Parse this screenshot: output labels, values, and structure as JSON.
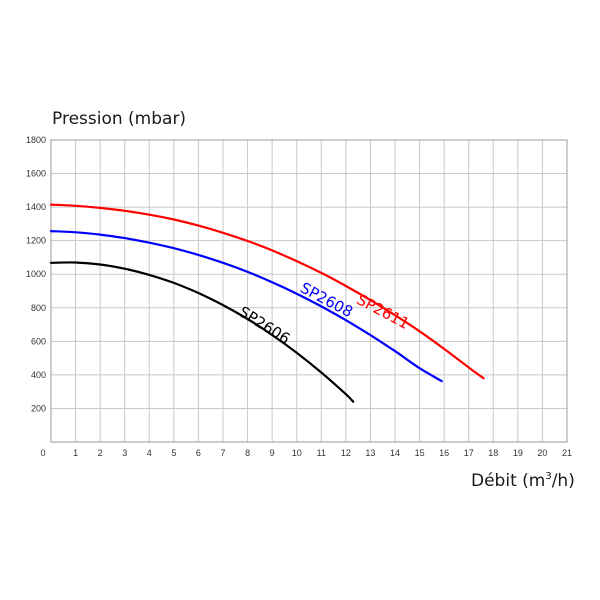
{
  "chart_data": {
    "type": "line",
    "ylabel": "Pression (mbar)",
    "xlabel_main": "Débit (m",
    "xlabel_sup": "3",
    "xlabel_end": "/h)",
    "xlim": [
      0,
      21
    ],
    "ylim": [
      0,
      1800
    ],
    "x_ticks": [
      0,
      1,
      2,
      3,
      4,
      5,
      6,
      7,
      8,
      9,
      10,
      11,
      12,
      13,
      14,
      15,
      16,
      17,
      18,
      19,
      20,
      21
    ],
    "y_ticks": [
      200,
      400,
      600,
      800,
      1000,
      1200,
      1400,
      1600,
      1800
    ],
    "grid": true,
    "series": [
      {
        "name": "SP2611",
        "color": "#ff0000",
        "points": [
          [
            0,
            1415
          ],
          [
            1,
            1408
          ],
          [
            2,
            1395
          ],
          [
            3,
            1378
          ],
          [
            4,
            1355
          ],
          [
            5,
            1326
          ],
          [
            6,
            1290
          ],
          [
            7,
            1247
          ],
          [
            8,
            1198
          ],
          [
            9,
            1142
          ],
          [
            10,
            1078
          ],
          [
            11,
            1008
          ],
          [
            12,
            930
          ],
          [
            13,
            846
          ],
          [
            14,
            756
          ],
          [
            15,
            660
          ],
          [
            16,
            555
          ],
          [
            17,
            444
          ],
          [
            17.6,
            380
          ]
        ]
      },
      {
        "name": "SP2608",
        "color": "#0000ff",
        "points": [
          [
            0,
            1257
          ],
          [
            1,
            1250
          ],
          [
            2,
            1236
          ],
          [
            3,
            1215
          ],
          [
            4,
            1188
          ],
          [
            5,
            1155
          ],
          [
            6,
            1115
          ],
          [
            7,
            1068
          ],
          [
            8,
            1014
          ],
          [
            9,
            952
          ],
          [
            10,
            884
          ],
          [
            11,
            808
          ],
          [
            12,
            726
          ],
          [
            13,
            637
          ],
          [
            14,
            542
          ],
          [
            15,
            440
          ],
          [
            15.9,
            363
          ]
        ]
      },
      {
        "name": "SP2606",
        "color": "#000000",
        "points": [
          [
            0,
            1068
          ],
          [
            1,
            1070
          ],
          [
            2,
            1058
          ],
          [
            3,
            1033
          ],
          [
            4,
            996
          ],
          [
            5,
            948
          ],
          [
            6,
            888
          ],
          [
            7,
            816
          ],
          [
            8,
            733
          ],
          [
            9,
            638
          ],
          [
            10,
            532
          ],
          [
            11,
            414
          ],
          [
            12,
            285
          ],
          [
            12.3,
            240
          ]
        ]
      }
    ]
  }
}
